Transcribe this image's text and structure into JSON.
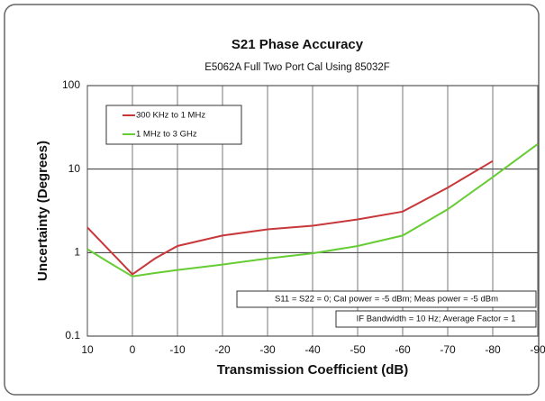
{
  "chart_data": {
    "type": "line",
    "title": "S21 Phase Accuracy",
    "subtitle": "E5062A Full Two Port Cal Using 85032F",
    "x_label": "Transmission Coefficient (dB)",
    "y_label": "Uncertainty (Degrees)",
    "x": [
      10,
      5,
      0,
      -5,
      -10,
      -20,
      -30,
      -40,
      -50,
      -60,
      -70,
      -80,
      -90
    ],
    "series": [
      {
        "name": "300 KHz to 1 MHz",
        "color": "#c8373a",
        "values": [
          2.0,
          1.05,
          0.55,
          0.85,
          1.2,
          1.6,
          1.9,
          2.1,
          2.5,
          3.1,
          6,
          12.5,
          null
        ]
      },
      {
        "name": "1 MHz to 3 GHz",
        "color": "#66cc33",
        "values": [
          1.1,
          0.75,
          0.52,
          0.57,
          0.62,
          0.72,
          0.85,
          0.98,
          1.2,
          1.6,
          3.3,
          8,
          20
        ]
      }
    ],
    "xlim": [
      10,
      -90
    ],
    "xticks": [
      10,
      0,
      -10,
      -20,
      -30,
      -40,
      -50,
      -60,
      -70,
      -80,
      -90
    ],
    "ylim": [
      0.1,
      100
    ],
    "yticks": [
      0.1,
      1,
      10,
      100
    ],
    "y_scale": "log",
    "grid": true,
    "legend": "upper left",
    "annotations": [
      "S11 = S22 = 0; Cal power = -5 dBm; Meas power = -5 dBm",
      "IF Bandwidth = 10 Hz; Average Factor = 1"
    ]
  }
}
